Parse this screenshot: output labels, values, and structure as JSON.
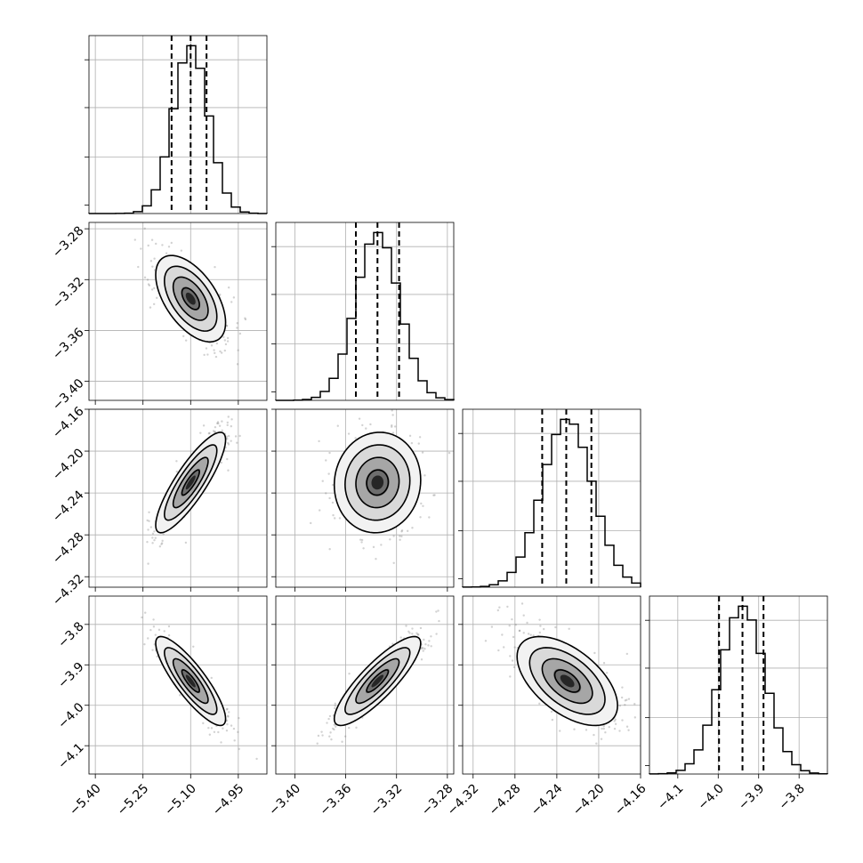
{
  "chart_data": {
    "type": "corner",
    "grid": true,
    "colors": {
      "line": "#000000",
      "grid": "#b0b0b0",
      "points": "#7f7f7f"
    },
    "parameters": [
      {
        "mean": -5.1,
        "sigma": 0.055,
        "quantiles": [
          -5.16,
          -5.1,
          -5.05
        ],
        "range": [
          -5.42,
          -4.86
        ],
        "ticks": [
          -5.4,
          -5.25,
          -5.1,
          -4.95
        ],
        "tick_labels": [
          "−5.40",
          "−5.25",
          "−5.10",
          "−4.95"
        ]
      },
      {
        "mean": -3.335,
        "sigma": 0.017,
        "quantiles": [
          -3.352,
          -3.335,
          -3.318
        ],
        "range": [
          -3.415,
          -3.275
        ],
        "ticks": [
          -3.28,
          -3.32,
          -3.36,
          -3.4
        ],
        "tick_labels": [
          "−3.28",
          "−3.32",
          "−3.36",
          "−3.40"
        ],
        "xticks": [
          -3.4,
          -3.36,
          -3.32,
          -3.28
        ],
        "xtick_labels": [
          "−3.40",
          "−3.36",
          "−3.32",
          "−3.28"
        ]
      },
      {
        "mean": -4.23,
        "sigma": 0.024,
        "quantiles": [
          -4.254,
          -4.231,
          -4.207
        ],
        "range": [
          -4.33,
          -4.16
        ],
        "ticks": [
          -4.16,
          -4.2,
          -4.24,
          -4.28,
          -4.32
        ],
        "tick_labels": [
          "−4.16",
          "−4.20",
          "−4.24",
          "−4.28",
          "−4.32"
        ],
        "xticks": [
          -4.32,
          -4.28,
          -4.24,
          -4.2,
          -4.16
        ],
        "xtick_labels": [
          "−4.32",
          "−4.28",
          "−4.24",
          "−4.20",
          "−4.16"
        ]
      },
      {
        "mean": -3.94,
        "sigma": 0.055,
        "quantiles": [
          -3.998,
          -3.94,
          -3.888
        ],
        "range": [
          -4.17,
          -3.73
        ],
        "ticks": [
          -3.8,
          -3.9,
          -4.0,
          -4.1
        ],
        "tick_labels": [
          "−3.8",
          "−3.9",
          "−4.0",
          "−4.1"
        ],
        "xticks": [
          -4.1,
          -4.0,
          -3.9,
          -3.8
        ],
        "xtick_labels": [
          "−4.1",
          "−4.0",
          "−3.9",
          "−3.8"
        ]
      }
    ],
    "correlations": [
      {
        "i": 1,
        "j": 0,
        "rho": -0.55
      },
      {
        "i": 2,
        "j": 0,
        "rho": 0.85
      },
      {
        "i": 2,
        "j": 1,
        "rho": 0.05
      },
      {
        "i": 3,
        "j": 0,
        "rho": -0.85
      },
      {
        "i": 3,
        "j": 1,
        "rho": 0.85
      },
      {
        "i": 3,
        "j": 2,
        "rho": -0.55
      }
    ],
    "contour_levels_sigma": [
      0.5,
      1.0,
      1.5,
      2.0
    ]
  }
}
